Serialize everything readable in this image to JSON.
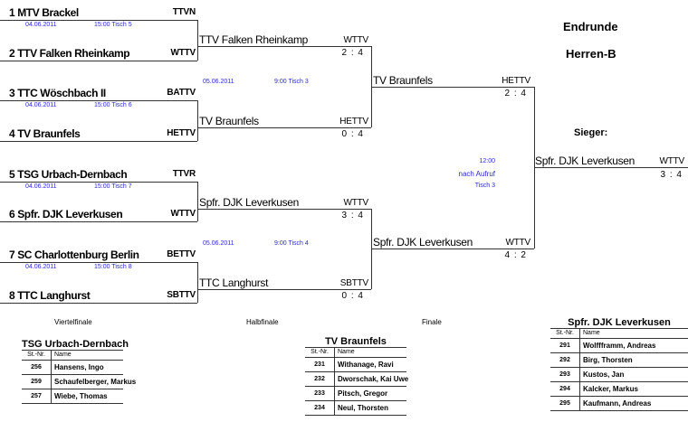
{
  "header": {
    "title": "Endrunde",
    "subtitle": "Herren-B",
    "winner_label": "Sieger:"
  },
  "rounds": {
    "qf": "Viertelfinale",
    "sf": "Halbfinale",
    "final": "Finale"
  },
  "quarterfinals": [
    {
      "team": "1 MTV Brackel",
      "assoc": "TTVN"
    },
    {
      "team": "2 TTV Falken Rheinkamp",
      "assoc": "WTTV"
    },
    {
      "team": "3 TTC Wöschbach II",
      "assoc": "BATTV"
    },
    {
      "team": "4 TV Braunfels",
      "assoc": "HETTV"
    },
    {
      "team": "5 TSG Urbach-Dernbach",
      "assoc": "TTVR"
    },
    {
      "team": "6 Spfr. DJK Leverkusen",
      "assoc": "WTTV"
    },
    {
      "team": "7 SC Charlottenburg Berlin",
      "assoc": "BETTV"
    },
    {
      "team": "8 TTC Langhurst",
      "assoc": "SBTTV"
    }
  ],
  "qf_schedule": [
    {
      "date": "04.06.2011",
      "time": "15:00 Tisch 5"
    },
    {
      "date": "04.06.2011",
      "time": "15:00 Tisch 6"
    },
    {
      "date": "04.06.2011",
      "time": "15:00 Tisch 7"
    },
    {
      "date": "04.06.2011",
      "time": "15:00 Tisch 8"
    }
  ],
  "semifinals": [
    {
      "team": "TTV Falken Rheinkamp",
      "assoc": "WTTV",
      "score": "2 : 4"
    },
    {
      "team": "TV Braunfels",
      "assoc": "HETTV",
      "score": "0 : 4"
    },
    {
      "team": "Spfr. DJK Leverkusen",
      "assoc": "WTTV",
      "score": "3 : 4"
    },
    {
      "team": "TTC Langhurst",
      "assoc": "SBTTV",
      "score": "0 : 4"
    }
  ],
  "sf_schedule": [
    {
      "date": "05.06.2011",
      "time": "9:00 Tisch 3"
    },
    {
      "date": "05.06.2011",
      "time": "9:00 Tisch 4"
    }
  ],
  "finals": [
    {
      "team": "TV Braunfels",
      "assoc": "HETTV",
      "score": "2 : 4"
    },
    {
      "team": "Spfr. DJK Leverkusen",
      "assoc": "WTTV",
      "score": "4 : 2"
    }
  ],
  "final_schedule": {
    "time": "12:00",
    "note": "nach Aufruf",
    "table": "Tisch 3"
  },
  "winner": {
    "team": "Spfr. DJK Leverkusen",
    "assoc": "WTTV",
    "score": "3 : 4"
  },
  "rosters": [
    {
      "team": "TSG Urbach-Dernbach",
      "col_nr": "St.-Nr.",
      "col_name": "Name",
      "players": [
        {
          "nr": "256",
          "name": "Hansens, Ingo"
        },
        {
          "nr": "259",
          "name": "Schaufelberger, Markus"
        },
        {
          "nr": "257",
          "name": "Wiebe, Thomas"
        }
      ]
    },
    {
      "team": "TV Braunfels",
      "col_nr": "St.-Nr.",
      "col_name": "Name",
      "players": [
        {
          "nr": "231",
          "name": "Withanage, Ravi"
        },
        {
          "nr": "232",
          "name": "Dworschak, Kai Uwe"
        },
        {
          "nr": "233",
          "name": "Pitsch, Gregor"
        },
        {
          "nr": "234",
          "name": "Neul, Thorsten"
        }
      ]
    },
    {
      "team": "Spfr. DJK Leverkusen",
      "col_nr": "St.-Nr.",
      "col_name": "Name",
      "players": [
        {
          "nr": "291",
          "name": "Wolffframm, Andreas"
        },
        {
          "nr": "292",
          "name": "Birg, Thorsten"
        },
        {
          "nr": "293",
          "name": "Kustos, Jan"
        },
        {
          "nr": "294",
          "name": "Kalcker, Markus"
        },
        {
          "nr": "295",
          "name": "Kaufmann, Andreas"
        }
      ]
    }
  ]
}
